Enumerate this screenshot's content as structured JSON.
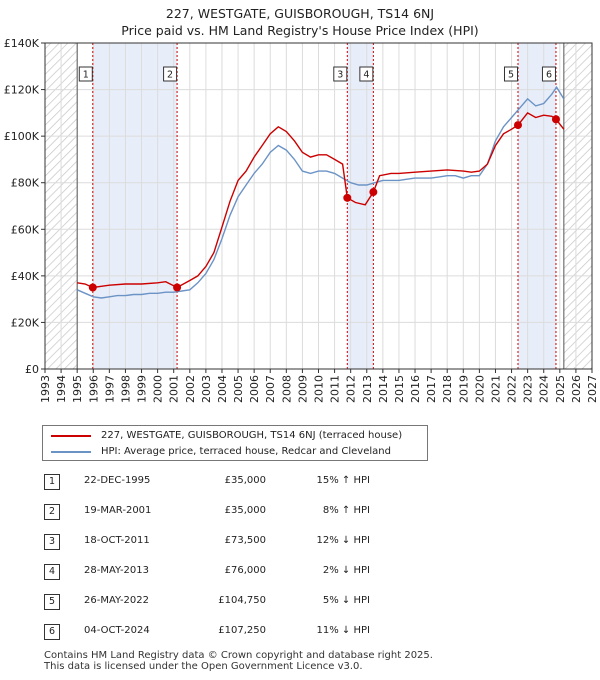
{
  "title": "227, WESTGATE, GUISBOROUGH, TS14 6NJ",
  "subtitle": "Price paid vs. HM Land Registry's House Price Index (HPI)",
  "chart_data": {
    "type": "line",
    "xlim": [
      1993,
      2027
    ],
    "ylim": [
      0,
      140000
    ],
    "x_ticks": [
      1993,
      1994,
      1995,
      1996,
      1997,
      1998,
      1999,
      2000,
      2001,
      2002,
      2003,
      2004,
      2005,
      2006,
      2007,
      2008,
      2009,
      2010,
      2011,
      2012,
      2013,
      2014,
      2015,
      2016,
      2017,
      2018,
      2019,
      2020,
      2021,
      2022,
      2023,
      2024,
      2025,
      2026,
      2027
    ],
    "y_ticks": [
      0,
      20000,
      40000,
      60000,
      80000,
      100000,
      120000,
      140000
    ],
    "y_tick_labels": [
      "£0",
      "£20K",
      "£40K",
      "£60K",
      "£80K",
      "£100K",
      "£120K",
      "£140K"
    ],
    "data_range": [
      1995.0,
      2025.25
    ],
    "hpi_series": {
      "name": "HPI: Average price, terraced house, Redcar and Cleveland",
      "color": "#6b93c6",
      "points": [
        [
          1995.0,
          34000
        ],
        [
          1995.5,
          32500
        ],
        [
          1996.0,
          31000
        ],
        [
          1996.5,
          30500
        ],
        [
          1997.0,
          31000
        ],
        [
          1997.5,
          31500
        ],
        [
          1998.0,
          31500
        ],
        [
          1998.5,
          32000
        ],
        [
          1999.0,
          32000
        ],
        [
          1999.5,
          32500
        ],
        [
          2000.0,
          32500
        ],
        [
          2000.5,
          33000
        ],
        [
          2001.0,
          33000
        ],
        [
          2001.5,
          33500
        ],
        [
          2002.0,
          34000
        ],
        [
          2002.5,
          37000
        ],
        [
          2003.0,
          41000
        ],
        [
          2003.5,
          47000
        ],
        [
          2004.0,
          56000
        ],
        [
          2004.5,
          66000
        ],
        [
          2005.0,
          74000
        ],
        [
          2005.5,
          79000
        ],
        [
          2006.0,
          84000
        ],
        [
          2006.5,
          88000
        ],
        [
          2007.0,
          93000
        ],
        [
          2007.5,
          96000
        ],
        [
          2008.0,
          94000
        ],
        [
          2008.5,
          90000
        ],
        [
          2009.0,
          85000
        ],
        [
          2009.5,
          84000
        ],
        [
          2010.0,
          85000
        ],
        [
          2010.5,
          85000
        ],
        [
          2011.0,
          84000
        ],
        [
          2011.5,
          82000
        ],
        [
          2012.0,
          80000
        ],
        [
          2012.5,
          79000
        ],
        [
          2013.0,
          79000
        ],
        [
          2013.5,
          80000
        ],
        [
          2014.0,
          81000
        ],
        [
          2014.5,
          81000
        ],
        [
          2015.0,
          81000
        ],
        [
          2015.5,
          81500
        ],
        [
          2016.0,
          82000
        ],
        [
          2016.5,
          82000
        ],
        [
          2017.0,
          82000
        ],
        [
          2017.5,
          82500
        ],
        [
          2018.0,
          83000
        ],
        [
          2018.5,
          83000
        ],
        [
          2019.0,
          82000
        ],
        [
          2019.5,
          83000
        ],
        [
          2020.0,
          83000
        ],
        [
          2020.5,
          88000
        ],
        [
          2021.0,
          98000
        ],
        [
          2021.5,
          104000
        ],
        [
          2022.0,
          108000
        ],
        [
          2022.5,
          112000
        ],
        [
          2023.0,
          116000
        ],
        [
          2023.5,
          113000
        ],
        [
          2024.0,
          114000
        ],
        [
          2024.5,
          118000
        ],
        [
          2024.8,
          121000
        ],
        [
          2025.25,
          116000
        ]
      ]
    },
    "price_series": {
      "name": "227, WESTGATE, GUISBOROUGH, TS14 6NJ (terraced house)",
      "color": "#cc0000",
      "points": [
        [
          1995.0,
          37000
        ],
        [
          1995.5,
          36500
        ],
        [
          1995.97,
          35000
        ],
        [
          1996.5,
          35500
        ],
        [
          1997.0,
          36000
        ],
        [
          1998.0,
          36500
        ],
        [
          1999.0,
          36500
        ],
        [
          2000.0,
          37000
        ],
        [
          2000.5,
          37500
        ],
        [
          2001.21,
          35000
        ],
        [
          2001.6,
          36500
        ],
        [
          2002.0,
          38000
        ],
        [
          2002.5,
          40000
        ],
        [
          2003.0,
          44000
        ],
        [
          2003.5,
          50000
        ],
        [
          2004.0,
          61000
        ],
        [
          2004.5,
          72000
        ],
        [
          2005.0,
          81000
        ],
        [
          2005.5,
          85000
        ],
        [
          2006.0,
          91000
        ],
        [
          2006.5,
          96000
        ],
        [
          2007.0,
          101000
        ],
        [
          2007.5,
          104000
        ],
        [
          2008.0,
          102000
        ],
        [
          2008.5,
          98000
        ],
        [
          2009.0,
          93000
        ],
        [
          2009.5,
          91000
        ],
        [
          2010.0,
          92000
        ],
        [
          2010.5,
          92000
        ],
        [
          2011.0,
          90000
        ],
        [
          2011.5,
          88000
        ],
        [
          2011.79,
          73500
        ],
        [
          2012.3,
          71500
        ],
        [
          2012.9,
          70500
        ],
        [
          2013.41,
          76000
        ],
        [
          2013.8,
          83000
        ],
        [
          2014.5,
          84000
        ],
        [
          2015.0,
          84000
        ],
        [
          2016.0,
          84500
        ],
        [
          2017.0,
          85000
        ],
        [
          2018.0,
          85500
        ],
        [
          2019.0,
          85000
        ],
        [
          2019.5,
          84500
        ],
        [
          2020.0,
          85000
        ],
        [
          2020.5,
          88000
        ],
        [
          2021.0,
          96000
        ],
        [
          2021.5,
          101000
        ],
        [
          2022.0,
          103000
        ],
        [
          2022.4,
          104750
        ],
        [
          2023.0,
          110000
        ],
        [
          2023.5,
          108000
        ],
        [
          2024.0,
          109000
        ],
        [
          2024.5,
          108500
        ],
        [
          2024.76,
          107250
        ],
        [
          2025.25,
          103000
        ]
      ]
    },
    "sales": [
      {
        "id": "1",
        "x": 1995.97,
        "price": 35000
      },
      {
        "id": "2",
        "x": 2001.21,
        "price": 35000
      },
      {
        "id": "3",
        "x": 2011.79,
        "price": 73500
      },
      {
        "id": "4",
        "x": 2013.41,
        "price": 76000
      },
      {
        "id": "5",
        "x": 2022.4,
        "price": 104750
      },
      {
        "id": "6",
        "x": 2024.76,
        "price": 107250
      }
    ],
    "shaded_spans": [
      [
        1995.97,
        2001.21
      ],
      [
        2011.79,
        2013.41
      ],
      [
        2022.4,
        2024.76
      ]
    ],
    "colors": {
      "grid": "#dcdcdc",
      "shade": "#e8eef9",
      "hatch": "#c8c8c8",
      "sale_line": "#cc0000",
      "axis": "#333333"
    }
  },
  "legend": {
    "price_label": "227, WESTGATE, GUISBOROUGH, TS14 6NJ (terraced house)",
    "hpi_label": "HPI: Average price, terraced house, Redcar and Cleveland"
  },
  "sales_table": [
    {
      "num": "1",
      "date": "22-DEC-1995",
      "price": "£35,000",
      "hpi": "15% ↑ HPI"
    },
    {
      "num": "2",
      "date": "19-MAR-2001",
      "price": "£35,000",
      "hpi": "8% ↑ HPI"
    },
    {
      "num": "3",
      "date": "18-OCT-2011",
      "price": "£73,500",
      "hpi": "12% ↓ HPI"
    },
    {
      "num": "4",
      "date": "28-MAY-2013",
      "price": "£76,000",
      "hpi": "2% ↓ HPI"
    },
    {
      "num": "5",
      "date": "26-MAY-2022",
      "price": "£104,750",
      "hpi": "5% ↓ HPI"
    },
    {
      "num": "6",
      "date": "04-OCT-2024",
      "price": "£107,250",
      "hpi": "11% ↓ HPI"
    }
  ],
  "footer": {
    "line1": "Contains HM Land Registry data © Crown copyright and database right 2025.",
    "line2": "This data is licensed under the Open Government Licence v3.0."
  }
}
